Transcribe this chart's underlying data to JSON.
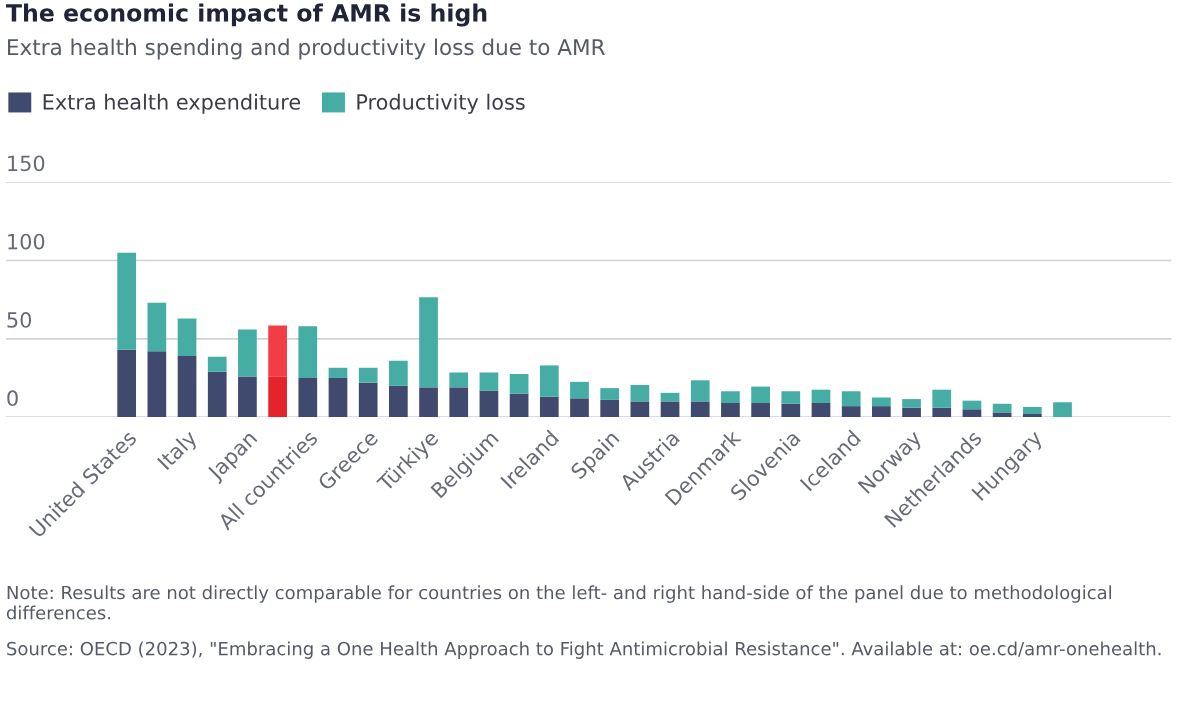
{
  "chart_data": {
    "type": "bar",
    "stacked": true,
    "title": "The economic impact of AMR is high",
    "subtitle": "Extra health spending and productivity loss due to AMR",
    "categories": [
      "United States",
      null,
      "Italy",
      null,
      "Japan",
      null,
      "All countries",
      null,
      "Greece",
      null,
      "Türkiye",
      null,
      "Belgium",
      null,
      "Ireland",
      null,
      "Spain",
      null,
      "Austria",
      null,
      "Denmark",
      null,
      "Slovenia",
      null,
      "Iceland",
      null,
      "Norway",
      null,
      "Netherlands",
      null,
      "Hungary",
      null
    ],
    "series": [
      {
        "name": "Extra health expenditure",
        "color": "#404a6e",
        "colors": [
          "#404a6e",
          "#404a6e",
          "#404a6e",
          "#404a6e",
          "#404a6e",
          "#e3242b",
          "#404a6e",
          "#404a6e",
          "#404a6e",
          "#404a6e",
          "#404a6e",
          "#404a6e",
          "#404a6e",
          "#404a6e",
          "#404a6e",
          "#404a6e",
          "#404a6e",
          "#404a6e",
          "#404a6e",
          "#404a6e",
          "#404a6e",
          "#404a6e",
          "#404a6e",
          "#404a6e",
          "#404a6e",
          "#404a6e",
          "#404a6e",
          "#404a6e",
          "#404a6e",
          "#404a6e",
          "#404a6e",
          "#404a6e"
        ],
        "values": [
          43,
          42,
          39,
          29,
          26,
          26,
          25,
          25,
          22,
          20,
          19,
          19,
          17,
          15,
          13,
          12,
          11,
          10,
          10,
          10,
          9,
          9,
          8.5,
          9,
          7,
          7,
          6,
          6,
          5,
          3,
          2,
          0
        ]
      },
      {
        "name": "Productivity loss",
        "color": "#45ada3",
        "colors": [
          "#45ada3",
          "#45ada3",
          "#45ada3",
          "#45ada3",
          "#45ada3",
          "#f23d45",
          "#45ada3",
          "#45ada3",
          "#45ada3",
          "#45ada3",
          "#45ada3",
          "#45ada3",
          "#45ada3",
          "#45ada3",
          "#45ada3",
          "#45ada3",
          "#45ada3",
          "#45ada3",
          "#45ada3",
          "#45ada3",
          "#45ada3",
          "#45ada3",
          "#45ada3",
          "#45ada3",
          "#45ada3",
          "#45ada3",
          "#45ada3",
          "#45ada3",
          "#45ada3",
          "#45ada3",
          "#45ada3",
          "#45ada3"
        ],
        "values": [
          62,
          31,
          24,
          9.5,
          30,
          32.5,
          33,
          6.5,
          9.5,
          16,
          57.5,
          9.5,
          11.5,
          12.5,
          20,
          10.5,
          7.5,
          10.5,
          5.5,
          13.5,
          7.5,
          10.5,
          8,
          8.5,
          9.5,
          5.5,
          5.5,
          11.5,
          5.5,
          5.5,
          4.5,
          9.5
        ]
      }
    ],
    "ylim": [
      0,
      150
    ],
    "yticks": [
      0,
      50,
      100,
      150
    ],
    "grid": "y",
    "legend": "top left",
    "annotations": [
      "Note: Results are not directly comparable for countries on the left- and right hand-side of the panel due to methodological differences.",
      "Source: OECD (2023), \"Embracing a One Health Approach to Fight Antimicrobial Resistance\". Available at: oe.cd/amr-onehealth."
    ]
  }
}
